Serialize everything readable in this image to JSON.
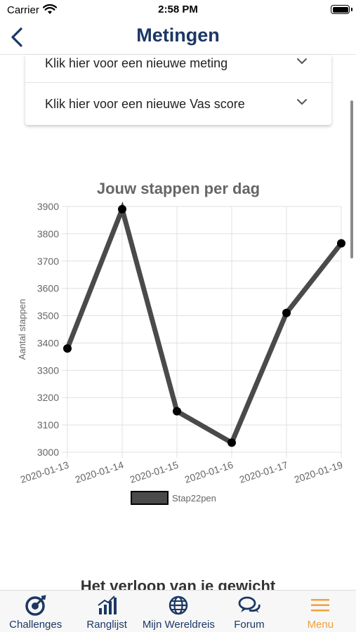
{
  "status_bar": {
    "carrier": "Carrier",
    "time": "2:58 PM"
  },
  "header": {
    "title": "Metingen"
  },
  "accordion": [
    {
      "label": "Klik hier voor een nieuwe meting"
    },
    {
      "label": "Klik hier voor een nieuwe Vas score"
    }
  ],
  "chart_data": {
    "type": "line",
    "title": "Jouw stappen per dag",
    "ylabel": "Aantal stappen",
    "xlabel": "",
    "categories": [
      "2020-01-13",
      "2020-01-14",
      "2020-01-15",
      "2020-01-16",
      "2020-01-17",
      "2020-01-19"
    ],
    "series": [
      {
        "name": "Stap22pen",
        "values": [
          3380,
          3890,
          3150,
          3035,
          3510,
          3765
        ]
      }
    ],
    "ylim": [
      3000,
      3900
    ],
    "yticks": [
      3000,
      3100,
      3200,
      3300,
      3400,
      3500,
      3600,
      3700,
      3800,
      3900
    ],
    "grid": true,
    "legend_position": "bottom",
    "line_color": "#4a4a4a",
    "point_color": "#000000"
  },
  "next_section": {
    "title": "Het verloop van je gewicht"
  },
  "tabs": [
    {
      "label": "Challenges",
      "icon": "target-icon"
    },
    {
      "label": "Ranglijst",
      "icon": "bar-chart-icon"
    },
    {
      "label": "Mijn Wereldreis",
      "icon": "globe-icon"
    },
    {
      "label": "Forum",
      "icon": "chat-icon"
    },
    {
      "label": "Menu",
      "icon": "menu-icon",
      "active": true
    }
  ],
  "colors": {
    "brand": "#1b3764",
    "accent": "#f0a23a"
  }
}
